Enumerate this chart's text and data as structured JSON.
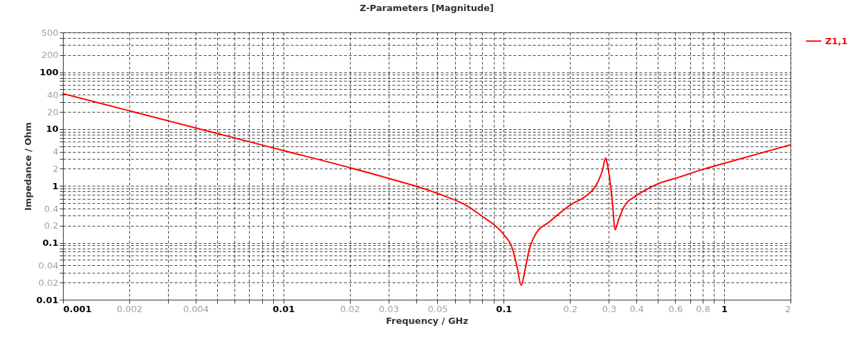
{
  "chart_data": {
    "type": "line",
    "title": "Z-Parameters [Magnitude]",
    "xlabel": "Frequency / GHz",
    "ylabel": "Impedance / Ohm",
    "log": "xy",
    "grid": true,
    "legend": "top right",
    "xlim": [
      0.001,
      2
    ],
    "ylim": [
      0.01,
      500
    ],
    "xticks": [
      0.001,
      0.002,
      {
        "value": 0.003,
        "label": null
      },
      0.004,
      {
        "value": 0.005,
        "label": null
      },
      {
        "value": 0.006,
        "label": null
      },
      {
        "value": 0.007,
        "label": null
      },
      {
        "value": 0.008,
        "label": null
      },
      {
        "value": 0.009,
        "label": null
      },
      0.01,
      0.02,
      0.03,
      {
        "value": 0.04,
        "label": null
      },
      0.05,
      {
        "value": 0.06,
        "label": null
      },
      {
        "value": 0.07,
        "label": null
      },
      {
        "value": 0.08,
        "label": null
      },
      {
        "value": 0.09,
        "label": null
      },
      0.1,
      0.2,
      0.3,
      0.4,
      {
        "value": 0.5,
        "label": null
      },
      0.6,
      {
        "value": 0.7,
        "label": null
      },
      0.8,
      {
        "value": 0.9,
        "label": null
      },
      1,
      2
    ],
    "yticks": [
      0.01,
      0.02,
      {
        "value": 0.03,
        "label": null
      },
      0.04,
      {
        "value": 0.05,
        "label": null
      },
      {
        "value": 0.06,
        "label": null
      },
      {
        "value": 0.07,
        "label": null
      },
      {
        "value": 0.08,
        "label": null
      },
      {
        "value": 0.09,
        "label": null
      },
      0.1,
      0.2,
      {
        "value": 0.3,
        "label": null
      },
      0.4,
      {
        "value": 0.5,
        "label": null
      },
      {
        "value": 0.6,
        "label": null
      },
      {
        "value": 0.7,
        "label": null
      },
      {
        "value": 0.8,
        "label": null
      },
      {
        "value": 0.9,
        "label": null
      },
      1,
      2,
      {
        "value": 3,
        "label": null
      },
      4,
      {
        "value": 5,
        "label": null
      },
      {
        "value": 6,
        "label": null
      },
      {
        "value": 7,
        "label": null
      },
      {
        "value": 8,
        "label": null
      },
      {
        "value": 9,
        "label": null
      },
      10,
      20,
      {
        "value": 30,
        "label": null
      },
      40,
      {
        "value": 50,
        "label": null
      },
      {
        "value": 60,
        "label": null
      },
      {
        "value": 70,
        "label": null
      },
      {
        "value": 80,
        "label": null
      },
      {
        "value": 90,
        "label": null
      },
      100,
      200,
      {
        "value": 300,
        "label": null
      },
      {
        "value": 400,
        "label": null
      },
      500
    ],
    "x": [
      0.001,
      0.002,
      0.004,
      0.01,
      0.02,
      0.03,
      0.05,
      0.07,
      0.08,
      0.09,
      0.1,
      0.11,
      0.115,
      0.12,
      0.125,
      0.13,
      0.14,
      0.16,
      0.2,
      0.24,
      0.26,
      0.28,
      0.29,
      0.295,
      0.31,
      0.32,
      0.33,
      0.35,
      0.4,
      0.45,
      0.5,
      0.6,
      0.8,
      1,
      2
    ],
    "series": [
      {
        "name": "Z1,1",
        "color": "#ff0000",
        "values": [
          42,
          21,
          10.5,
          4.2,
          2.1,
          1.36,
          0.74,
          0.42,
          0.29,
          0.21,
          0.14,
          0.075,
          0.037,
          0.018,
          0.034,
          0.072,
          0.146,
          0.23,
          0.46,
          0.7,
          0.97,
          1.85,
          3.1,
          2.4,
          0.6,
          0.17,
          0.24,
          0.42,
          0.68,
          0.89,
          1.09,
          1.36,
          1.95,
          2.5,
          5.3
        ]
      }
    ]
  }
}
